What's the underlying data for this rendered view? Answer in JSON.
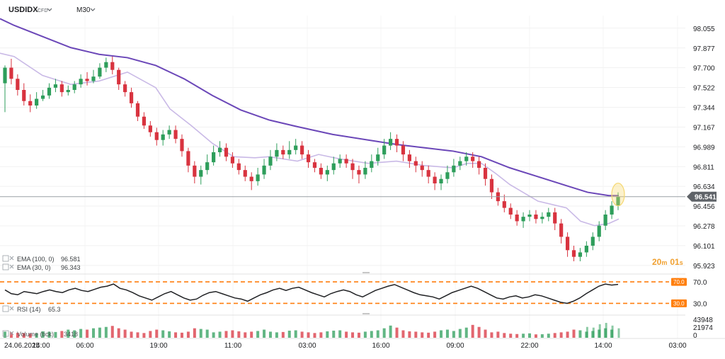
{
  "header": {
    "symbol": "USDIDX",
    "symbol_badge": "CFD",
    "timeframe": "M30"
  },
  "countdown": {
    "minutes": "20",
    "minutes_unit": "m",
    "seconds": "01",
    "seconds_unit": "s"
  },
  "colors": {
    "up": "#2e9e5b",
    "down": "#d8333f",
    "ema100": "#6b47b8",
    "ema30": "#c9b9e6",
    "level": "#ff7f0e",
    "price_tag": "#5f6368",
    "highlight": "#f5d76e"
  },
  "chart_data": [
    {
      "type": "candlestick",
      "name": "main",
      "y_ticks": [
        "98.055",
        "97.877",
        "97.700",
        "97.522",
        "97.344",
        "97.167",
        "96.989",
        "96.811",
        "96.634",
        "96.456",
        "96.278",
        "96.101",
        "95.923"
      ],
      "ylim": [
        95.89,
        98.13
      ],
      "current_price": "96.541",
      "indicators": [
        {
          "label": "EMA (100, 0)",
          "value": "96.581"
        },
        {
          "label": "EMA (30, 0)",
          "value": "96.343"
        }
      ],
      "ema100": [
        [
          0,
          98.14
        ],
        [
          20,
          98.08
        ],
        [
          60,
          97.98
        ],
        [
          100,
          97.88
        ],
        [
          140,
          97.82
        ],
        [
          180,
          97.79
        ],
        [
          220,
          97.72
        ],
        [
          260,
          97.6
        ],
        [
          300,
          97.45
        ],
        [
          340,
          97.32
        ],
        [
          380,
          97.23
        ],
        [
          420,
          97.17
        ],
        [
          470,
          97.1
        ],
        [
          520,
          97.05
        ],
        [
          560,
          97.01
        ],
        [
          600,
          96.98
        ],
        [
          640,
          96.95
        ],
        [
          680,
          96.9
        ],
        [
          720,
          96.8
        ],
        [
          760,
          96.72
        ],
        [
          800,
          96.64
        ],
        [
          830,
          96.58
        ],
        [
          860,
          96.55
        ],
        [
          874,
          96.55
        ]
      ],
      "ema30": [
        [
          0,
          97.83
        ],
        [
          20,
          97.8
        ],
        [
          60,
          97.63
        ],
        [
          100,
          97.55
        ],
        [
          140,
          97.58
        ],
        [
          180,
          97.66
        ],
        [
          220,
          97.52
        ],
        [
          240,
          97.33
        ],
        [
          270,
          97.18
        ],
        [
          300,
          97.02
        ],
        [
          330,
          96.9
        ],
        [
          360,
          96.89
        ],
        [
          380,
          96.9
        ],
        [
          420,
          96.86
        ],
        [
          450,
          96.92
        ],
        [
          480,
          96.88
        ],
        [
          520,
          96.84
        ],
        [
          560,
          96.86
        ],
        [
          600,
          96.82
        ],
        [
          640,
          96.8
        ],
        [
          660,
          96.84
        ],
        [
          680,
          96.84
        ],
        [
          700,
          96.75
        ],
        [
          720,
          96.65
        ],
        [
          760,
          96.5
        ],
        [
          800,
          96.44
        ],
        [
          820,
          96.32
        ],
        [
          840,
          96.28
        ],
        [
          860,
          96.3
        ],
        [
          874,
          96.34
        ]
      ],
      "candles": [
        [
          97.56,
          97.7,
          97.72,
          97.3
        ],
        [
          97.7,
          97.6,
          97.78,
          97.55
        ],
        [
          97.6,
          97.5,
          97.64,
          97.45
        ],
        [
          97.5,
          97.4,
          97.56,
          97.36
        ],
        [
          97.4,
          97.36,
          97.46,
          97.3
        ],
        [
          97.36,
          97.42,
          97.48,
          97.33
        ],
        [
          97.42,
          97.45,
          97.5,
          97.4
        ],
        [
          97.45,
          97.52,
          97.56,
          97.42
        ],
        [
          97.52,
          97.55,
          97.6,
          97.48
        ],
        [
          97.55,
          97.48,
          97.58,
          97.44
        ],
        [
          97.48,
          97.5,
          97.54,
          97.45
        ],
        [
          97.5,
          97.55,
          97.58,
          97.47
        ],
        [
          97.55,
          97.6,
          97.64,
          97.52
        ],
        [
          97.6,
          97.58,
          97.66,
          97.54
        ],
        [
          97.58,
          97.62,
          97.68,
          97.56
        ],
        [
          97.62,
          97.7,
          97.74,
          97.6
        ],
        [
          97.7,
          97.75,
          97.79,
          97.66
        ],
        [
          97.75,
          97.68,
          97.8,
          97.64
        ],
        [
          97.68,
          97.55,
          97.7,
          97.5
        ],
        [
          97.55,
          97.48,
          97.58,
          97.44
        ],
        [
          97.48,
          97.38,
          97.52,
          97.34
        ],
        [
          97.38,
          97.26,
          97.4,
          97.22
        ],
        [
          97.26,
          97.18,
          97.3,
          97.15
        ],
        [
          97.18,
          97.12,
          97.22,
          97.08
        ],
        [
          97.12,
          97.05,
          97.16,
          97.0
        ],
        [
          97.05,
          97.1,
          97.14,
          97.0
        ],
        [
          97.1,
          97.14,
          97.18,
          97.06
        ],
        [
          97.14,
          97.06,
          97.18,
          97.02
        ],
        [
          97.06,
          96.95,
          97.1,
          96.9
        ],
        [
          96.95,
          96.82,
          96.98,
          96.76
        ],
        [
          96.82,
          96.72,
          96.86,
          96.66
        ],
        [
          96.72,
          96.78,
          96.82,
          96.65
        ],
        [
          96.78,
          96.85,
          96.92,
          96.74
        ],
        [
          96.85,
          96.94,
          97.0,
          96.82
        ],
        [
          96.94,
          96.98,
          97.04,
          96.9
        ],
        [
          96.98,
          96.9,
          97.02,
          96.86
        ],
        [
          96.9,
          96.84,
          96.94,
          96.8
        ],
        [
          96.84,
          96.78,
          96.88,
          96.74
        ],
        [
          96.78,
          96.72,
          96.82,
          96.68
        ],
        [
          96.72,
          96.68,
          96.76,
          96.6
        ],
        [
          96.68,
          96.74,
          96.8,
          96.64
        ],
        [
          96.74,
          96.82,
          96.88,
          96.7
        ],
        [
          96.82,
          96.9,
          96.96,
          96.78
        ],
        [
          96.9,
          96.96,
          97.02,
          96.86
        ],
        [
          96.96,
          96.92,
          97.0,
          96.88
        ],
        [
          96.92,
          96.96,
          97.04,
          96.88
        ],
        [
          96.96,
          97.0,
          97.06,
          96.92
        ],
        [
          97.0,
          96.92,
          97.04,
          96.88
        ],
        [
          96.92,
          96.85,
          96.96,
          96.8
        ],
        [
          96.85,
          96.8,
          96.88,
          96.76
        ],
        [
          96.8,
          96.74,
          96.84,
          96.7
        ],
        [
          96.74,
          96.78,
          96.82,
          96.68
        ],
        [
          96.78,
          96.84,
          96.9,
          96.74
        ],
        [
          96.84,
          96.88,
          96.92,
          96.8
        ],
        [
          96.88,
          96.84,
          96.92,
          96.8
        ],
        [
          96.84,
          96.78,
          96.88,
          96.7
        ],
        [
          96.78,
          96.74,
          96.82,
          96.66
        ],
        [
          96.74,
          96.8,
          96.86,
          96.7
        ],
        [
          96.8,
          96.86,
          96.92,
          96.76
        ],
        [
          96.86,
          96.92,
          96.98,
          96.82
        ],
        [
          96.92,
          97.0,
          97.06,
          96.88
        ],
        [
          97.0,
          97.06,
          97.12,
          96.96
        ],
        [
          97.06,
          97.0,
          97.1,
          96.94
        ],
        [
          97.0,
          96.92,
          97.04,
          96.86
        ],
        [
          96.92,
          96.86,
          96.96,
          96.8
        ],
        [
          96.86,
          96.82,
          96.9,
          96.76
        ],
        [
          96.82,
          96.78,
          96.86,
          96.72
        ],
        [
          96.78,
          96.72,
          96.82,
          96.66
        ],
        [
          96.72,
          96.66,
          96.76,
          96.6
        ],
        [
          96.66,
          96.7,
          96.74,
          96.6
        ],
        [
          96.7,
          96.76,
          96.82,
          96.66
        ],
        [
          96.76,
          96.82,
          96.88,
          96.72
        ],
        [
          96.82,
          96.86,
          96.9,
          96.78
        ],
        [
          96.86,
          96.9,
          96.94,
          96.82
        ],
        [
          96.9,
          96.86,
          96.94,
          96.8
        ],
        [
          96.86,
          96.8,
          96.9,
          96.74
        ],
        [
          96.8,
          96.7,
          96.84,
          96.64
        ],
        [
          96.7,
          96.58,
          96.74,
          96.52
        ],
        [
          96.58,
          96.5,
          96.62,
          96.46
        ],
        [
          96.5,
          96.44,
          96.56,
          96.4
        ],
        [
          96.44,
          96.38,
          96.48,
          96.34
        ],
        [
          96.38,
          96.32,
          96.42,
          96.28
        ],
        [
          96.32,
          96.36,
          96.4,
          96.26
        ],
        [
          96.36,
          96.38,
          96.42,
          96.32
        ],
        [
          96.38,
          96.34,
          96.42,
          96.3
        ],
        [
          96.34,
          96.36,
          96.4,
          96.3
        ],
        [
          96.36,
          96.4,
          96.44,
          96.32
        ],
        [
          96.4,
          96.3,
          96.44,
          96.24
        ],
        [
          96.3,
          96.18,
          96.34,
          96.12
        ],
        [
          96.18,
          96.06,
          96.22,
          96.0
        ],
        [
          96.06,
          96.0,
          96.1,
          95.96
        ],
        [
          96.0,
          96.04,
          96.08,
          95.96
        ],
        [
          96.04,
          96.1,
          96.14,
          96.0
        ],
        [
          96.1,
          96.18,
          96.22,
          96.06
        ],
        [
          96.18,
          96.28,
          96.32,
          96.14
        ],
        [
          96.28,
          96.38,
          96.42,
          96.24
        ],
        [
          96.38,
          96.46,
          96.5,
          96.34
        ],
        [
          96.46,
          96.54,
          96.58,
          96.42
        ]
      ]
    },
    {
      "type": "line",
      "name": "rsi",
      "indicator_label": "RSI (14)",
      "indicator_value": "65.3",
      "levels": [
        "70.0",
        "30.0"
      ],
      "y_ticks": [
        "70.0",
        "30.0"
      ],
      "ylim": [
        20,
        78
      ],
      "values": [
        55,
        48,
        46,
        52,
        50,
        48,
        52,
        55,
        52,
        50,
        55,
        58,
        54,
        52,
        56,
        60,
        62,
        66,
        58,
        55,
        50,
        44,
        40,
        36,
        42,
        48,
        52,
        46,
        40,
        36,
        38,
        45,
        50,
        52,
        48,
        44,
        40,
        38,
        34,
        40,
        46,
        50,
        55,
        58,
        54,
        58,
        60,
        55,
        50,
        46,
        42,
        48,
        52,
        55,
        52,
        46,
        42,
        48,
        54,
        58,
        62,
        65,
        60,
        55,
        50,
        46,
        44,
        42,
        38,
        44,
        50,
        54,
        58,
        62,
        58,
        52,
        46,
        40,
        38,
        42,
        44,
        40,
        42,
        46,
        44,
        40,
        36,
        32,
        30,
        34,
        40,
        48,
        55,
        62,
        66,
        64,
        65.3
      ]
    },
    {
      "type": "bar",
      "name": "volume",
      "indicator_label": "Volume (tick)",
      "indicator_value": "3418",
      "y_ticks": [
        "43948",
        "21974",
        "0"
      ],
      "ylim": [
        0,
        43948
      ],
      "values": [
        9000,
        8000,
        7200,
        6800,
        6000,
        6500,
        9500,
        9000,
        8500,
        10000,
        12000,
        11000,
        13000,
        12000,
        14000,
        15000,
        16000,
        17500,
        14000,
        12000,
        9000,
        8000,
        7000,
        10000,
        12000,
        11000,
        9500,
        8000,
        7500,
        9000,
        14000,
        13000,
        12000,
        8000,
        9000,
        10000,
        11000,
        9500,
        8000,
        9000,
        10000,
        12000,
        9000,
        8000,
        8500,
        10500,
        11000,
        9000,
        8000,
        7000,
        8000,
        9500,
        10500,
        11000,
        9000,
        8000,
        7500,
        9000,
        10000,
        11000,
        14000,
        18000,
        15000,
        11000,
        9500,
        9000,
        8000,
        7500,
        9000,
        11000,
        12000,
        10000,
        13000,
        15000,
        19000,
        16000,
        12000,
        8000,
        9000,
        7000,
        6000,
        5500,
        6000,
        6500,
        5000,
        5200,
        6000,
        7000,
        8000,
        9000,
        12000,
        11000,
        9000,
        10000,
        12000,
        14000,
        12000
      ],
      "extra_bars": [
        16000,
        15000,
        20000,
        22000,
        18000,
        14000
      ]
    }
  ],
  "time_axis": {
    "labels": [
      {
        "t": "24.06.2025",
        "x": 6
      },
      {
        "t": "14:00",
        "x": 58
      },
      {
        "t": "06:00",
        "x": 120
      },
      {
        "t": "19:00",
        "x": 224
      },
      {
        "t": "11:00",
        "x": 329
      },
      {
        "t": "03:00",
        "x": 434
      },
      {
        "t": "16:00",
        "x": 538
      },
      {
        "t": "09:00",
        "x": 643
      },
      {
        "t": "22:00",
        "x": 748
      },
      {
        "t": "14:00",
        "x": 852
      },
      {
        "t": "03:00",
        "x": 957
      }
    ]
  }
}
